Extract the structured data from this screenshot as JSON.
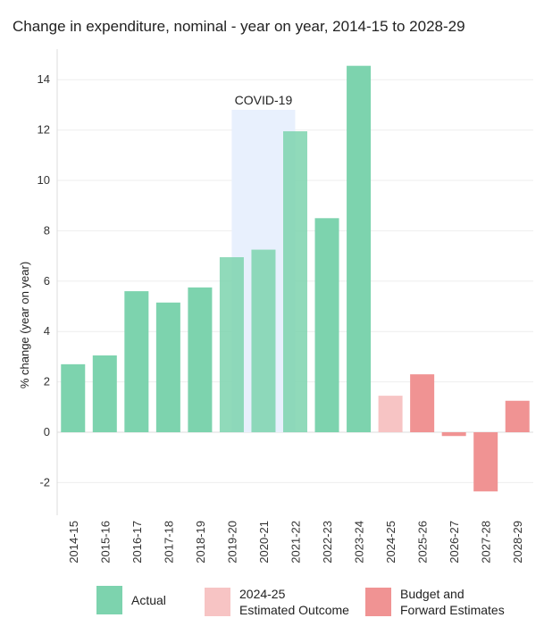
{
  "chart_data": {
    "type": "bar",
    "title": "Change in expenditure, nominal - year on year, 2014-15 to 2028-29",
    "ylabel": "% change (year on year)",
    "xlabel": "",
    "ylim": [
      -3,
      15
    ],
    "yticks": [
      14,
      12,
      10,
      8,
      6,
      4,
      2,
      0,
      -2
    ],
    "ytick_labels": [
      "14",
      "12",
      "10",
      "8",
      "6",
      "4",
      "2",
      "0",
      "-2"
    ],
    "categories": [
      "2014-15",
      "2015-16",
      "2016-17",
      "2017-18",
      "2018-19",
      "2019-20",
      "2020-21",
      "2021-22",
      "2022-23",
      "2023-24",
      "2024-25",
      "2025-26",
      "2026-27",
      "2027-28",
      "2028-29"
    ],
    "values": [
      2.7,
      3.05,
      5.6,
      5.15,
      5.75,
      6.95,
      7.25,
      11.95,
      8.5,
      14.55,
      1.45,
      2.3,
      -0.15,
      -2.35,
      1.25
    ],
    "bar_groups": [
      "actual",
      "actual",
      "actual",
      "actual",
      "actual",
      "actual",
      "actual",
      "actual",
      "actual",
      "actual",
      "estimated",
      "budget",
      "budget",
      "budget",
      "budget"
    ],
    "colors": {
      "actual": "#7dd3ae",
      "estimated": "#f7c4c4",
      "budget": "#f09393",
      "covid_band": "#e8f0fd",
      "gridline": "#eeeeee"
    },
    "annotation": {
      "label": "COVID-19",
      "from_category": "2019-20",
      "to_category": "2021-22"
    },
    "legend": [
      {
        "key": "actual",
        "label": "Actual"
      },
      {
        "key": "estimated",
        "label": "2024-25\nEstimated Outcome"
      },
      {
        "key": "budget",
        "label": "Budget and\nForward Estimates"
      }
    ],
    "legend_position": "bottom",
    "grid": true
  }
}
